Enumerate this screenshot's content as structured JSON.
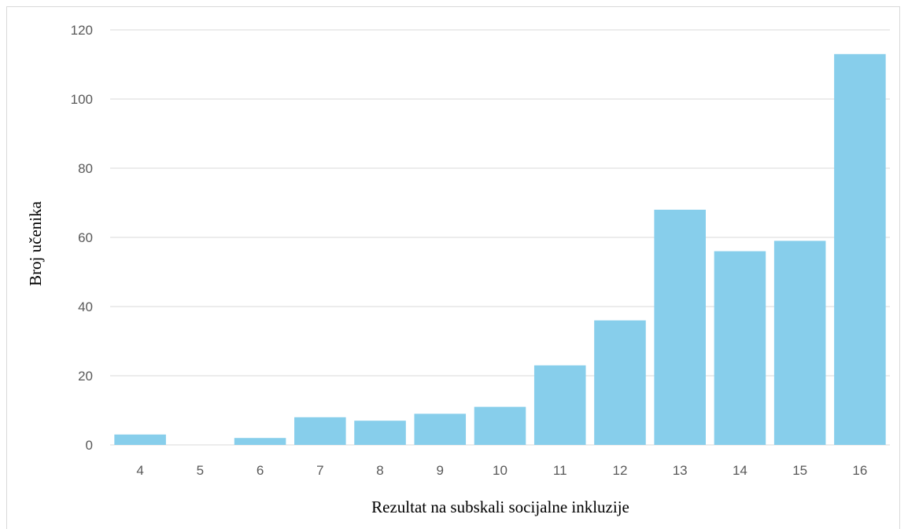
{
  "chart_data": {
    "type": "bar",
    "title": "",
    "xlabel": "Rezultat na subskali socijalne inkluzije",
    "ylabel": "Broj učenika",
    "categories": [
      "4",
      "5",
      "6",
      "7",
      "8",
      "9",
      "10",
      "11",
      "12",
      "13",
      "14",
      "15",
      "16"
    ],
    "values": [
      3,
      0,
      2,
      8,
      7,
      9,
      11,
      23,
      36,
      68,
      56,
      59,
      113
    ],
    "ylim": [
      0,
      120
    ],
    "yticks": [
      0,
      20,
      40,
      60,
      80,
      100,
      120
    ],
    "grid": true,
    "legend": "none",
    "colors": {
      "bar": "#87ceeb",
      "grid": "#d9d9d9",
      "tick_text": "#595959",
      "axis_title": "#000000"
    }
  }
}
